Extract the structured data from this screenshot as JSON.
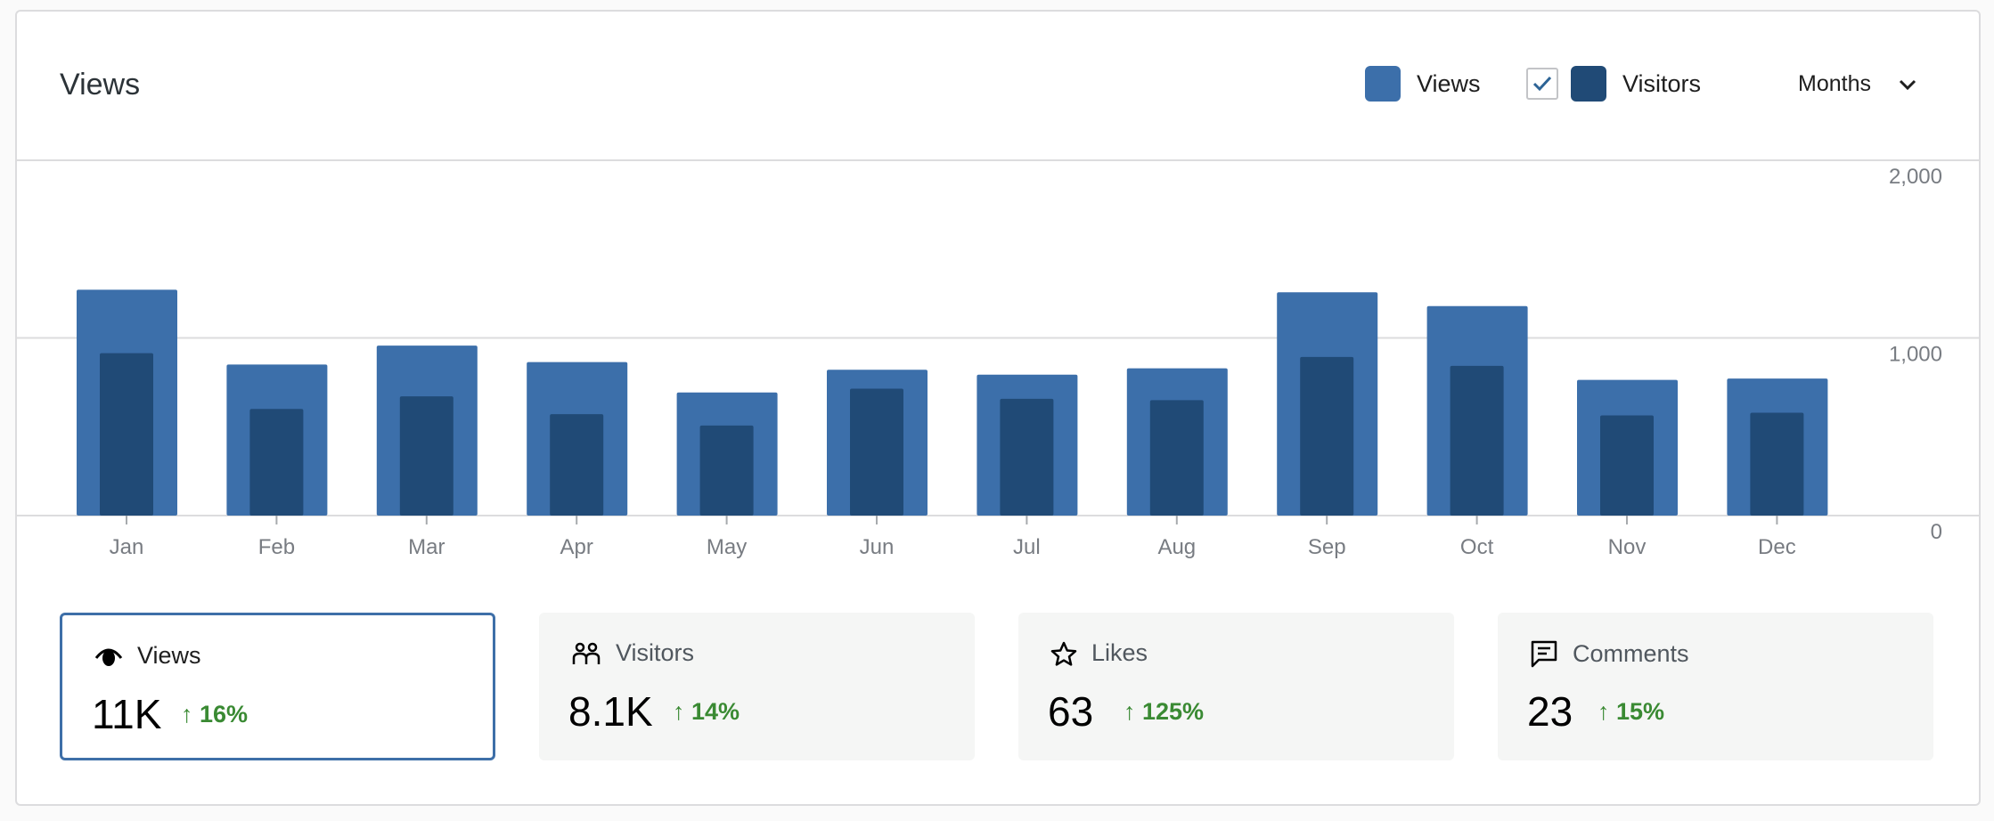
{
  "header": {
    "title": "Views",
    "legend": [
      {
        "label": "Views",
        "color": "#3c6faa"
      },
      {
        "label": "Visitors",
        "color": "#204a76",
        "checked": true
      }
    ],
    "period": "Months"
  },
  "chart_data": {
    "type": "bar",
    "categories": [
      "Jan",
      "Feb",
      "Mar",
      "Apr",
      "May",
      "Jun",
      "Jul",
      "Aug",
      "Sep",
      "Oct",
      "Nov",
      "Dec"
    ],
    "series": [
      {
        "name": "Views",
        "color": "#3c6faa",
        "values": [
          1271,
          850,
          957,
          864,
          693,
          821,
          793,
          829,
          1257,
          1179,
          764,
          771
        ]
      },
      {
        "name": "Visitors",
        "color": "#204a76",
        "values": [
          914,
          600,
          671,
          571,
          507,
          714,
          657,
          650,
          893,
          843,
          564,
          579
        ]
      }
    ],
    "yticks": [
      {
        "v": 0,
        "label": "0"
      },
      {
        "v": 1000,
        "label": "1,000"
      },
      {
        "v": 2000,
        "label": "2,000"
      }
    ],
    "ylim": [
      0,
      2000
    ],
    "grid": true,
    "legend": "top-right",
    "title": "Views",
    "xlabel": "",
    "ylabel": ""
  },
  "stats": [
    {
      "label": "Views",
      "value": "11K",
      "change": "↑ 16%",
      "icon": "eye"
    },
    {
      "label": "Visitors",
      "value": "8.1K",
      "change": "↑ 14%",
      "icon": "people"
    },
    {
      "label": "Likes",
      "value": "63",
      "change": "↑ 125%",
      "icon": "star"
    },
    {
      "label": "Comments",
      "value": "23",
      "change": "↑ 15%",
      "icon": "comment"
    }
  ]
}
